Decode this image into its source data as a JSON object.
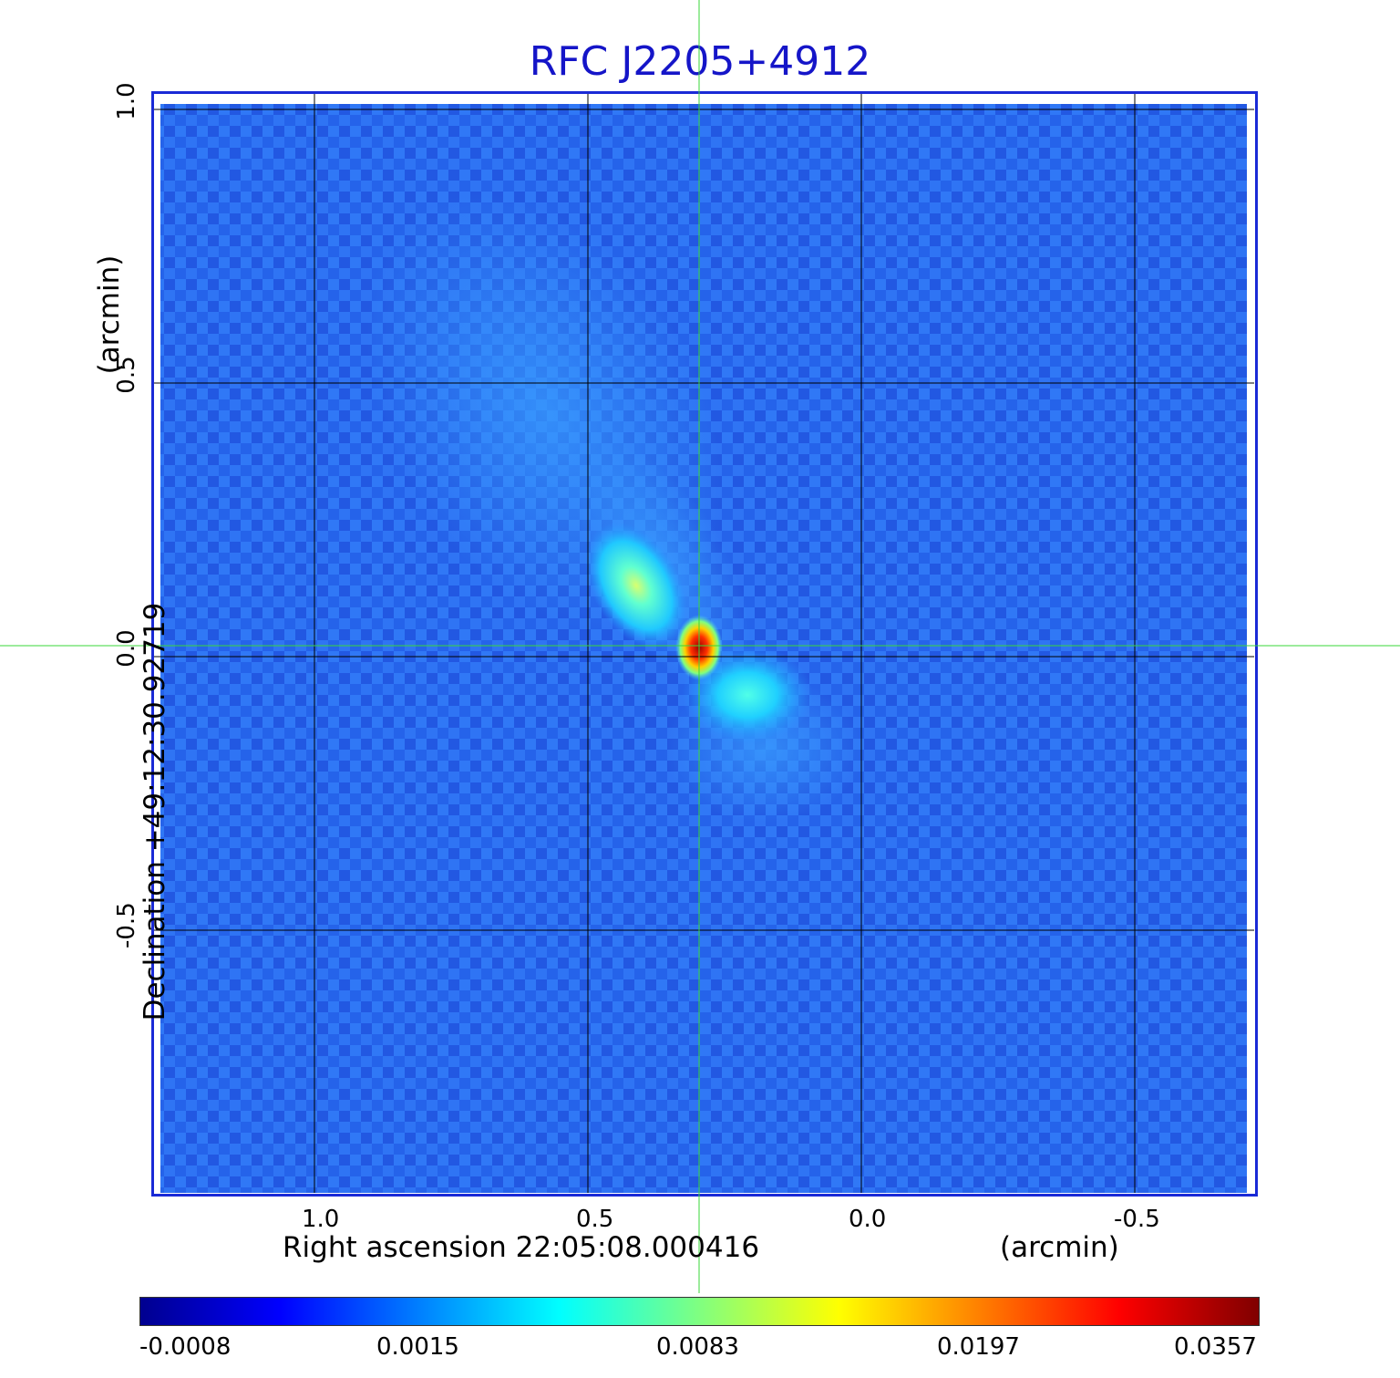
{
  "title": "RFC J2205+4912",
  "xaxis": {
    "label": "Right ascension  22:05:08.000416",
    "unit": "(arcmin)",
    "ticks": [
      "1.0",
      "0.5",
      "0.0",
      "-0.5"
    ]
  },
  "yaxis": {
    "label": "Declination  +49:12:30.92719",
    "unit": "(arcmin)",
    "ticks": [
      "1.0",
      "0.5",
      "0.0",
      "-0.5"
    ]
  },
  "colorbar": {
    "labels": [
      "-0.0008",
      "0.0015",
      "0.0083",
      "0.0197",
      "0.0357"
    ],
    "colors": [
      "#00008f",
      "#0000ff",
      "#0080ff",
      "#00ffff",
      "#80ff80",
      "#ffff00",
      "#ff8000",
      "#ff0000",
      "#800000"
    ]
  },
  "colors": {
    "title": "#1515c8",
    "frame": "#1a2ad6",
    "background_noise": "#2a6cf0",
    "crosshair": "#39d739",
    "grid": "#000000"
  }
}
